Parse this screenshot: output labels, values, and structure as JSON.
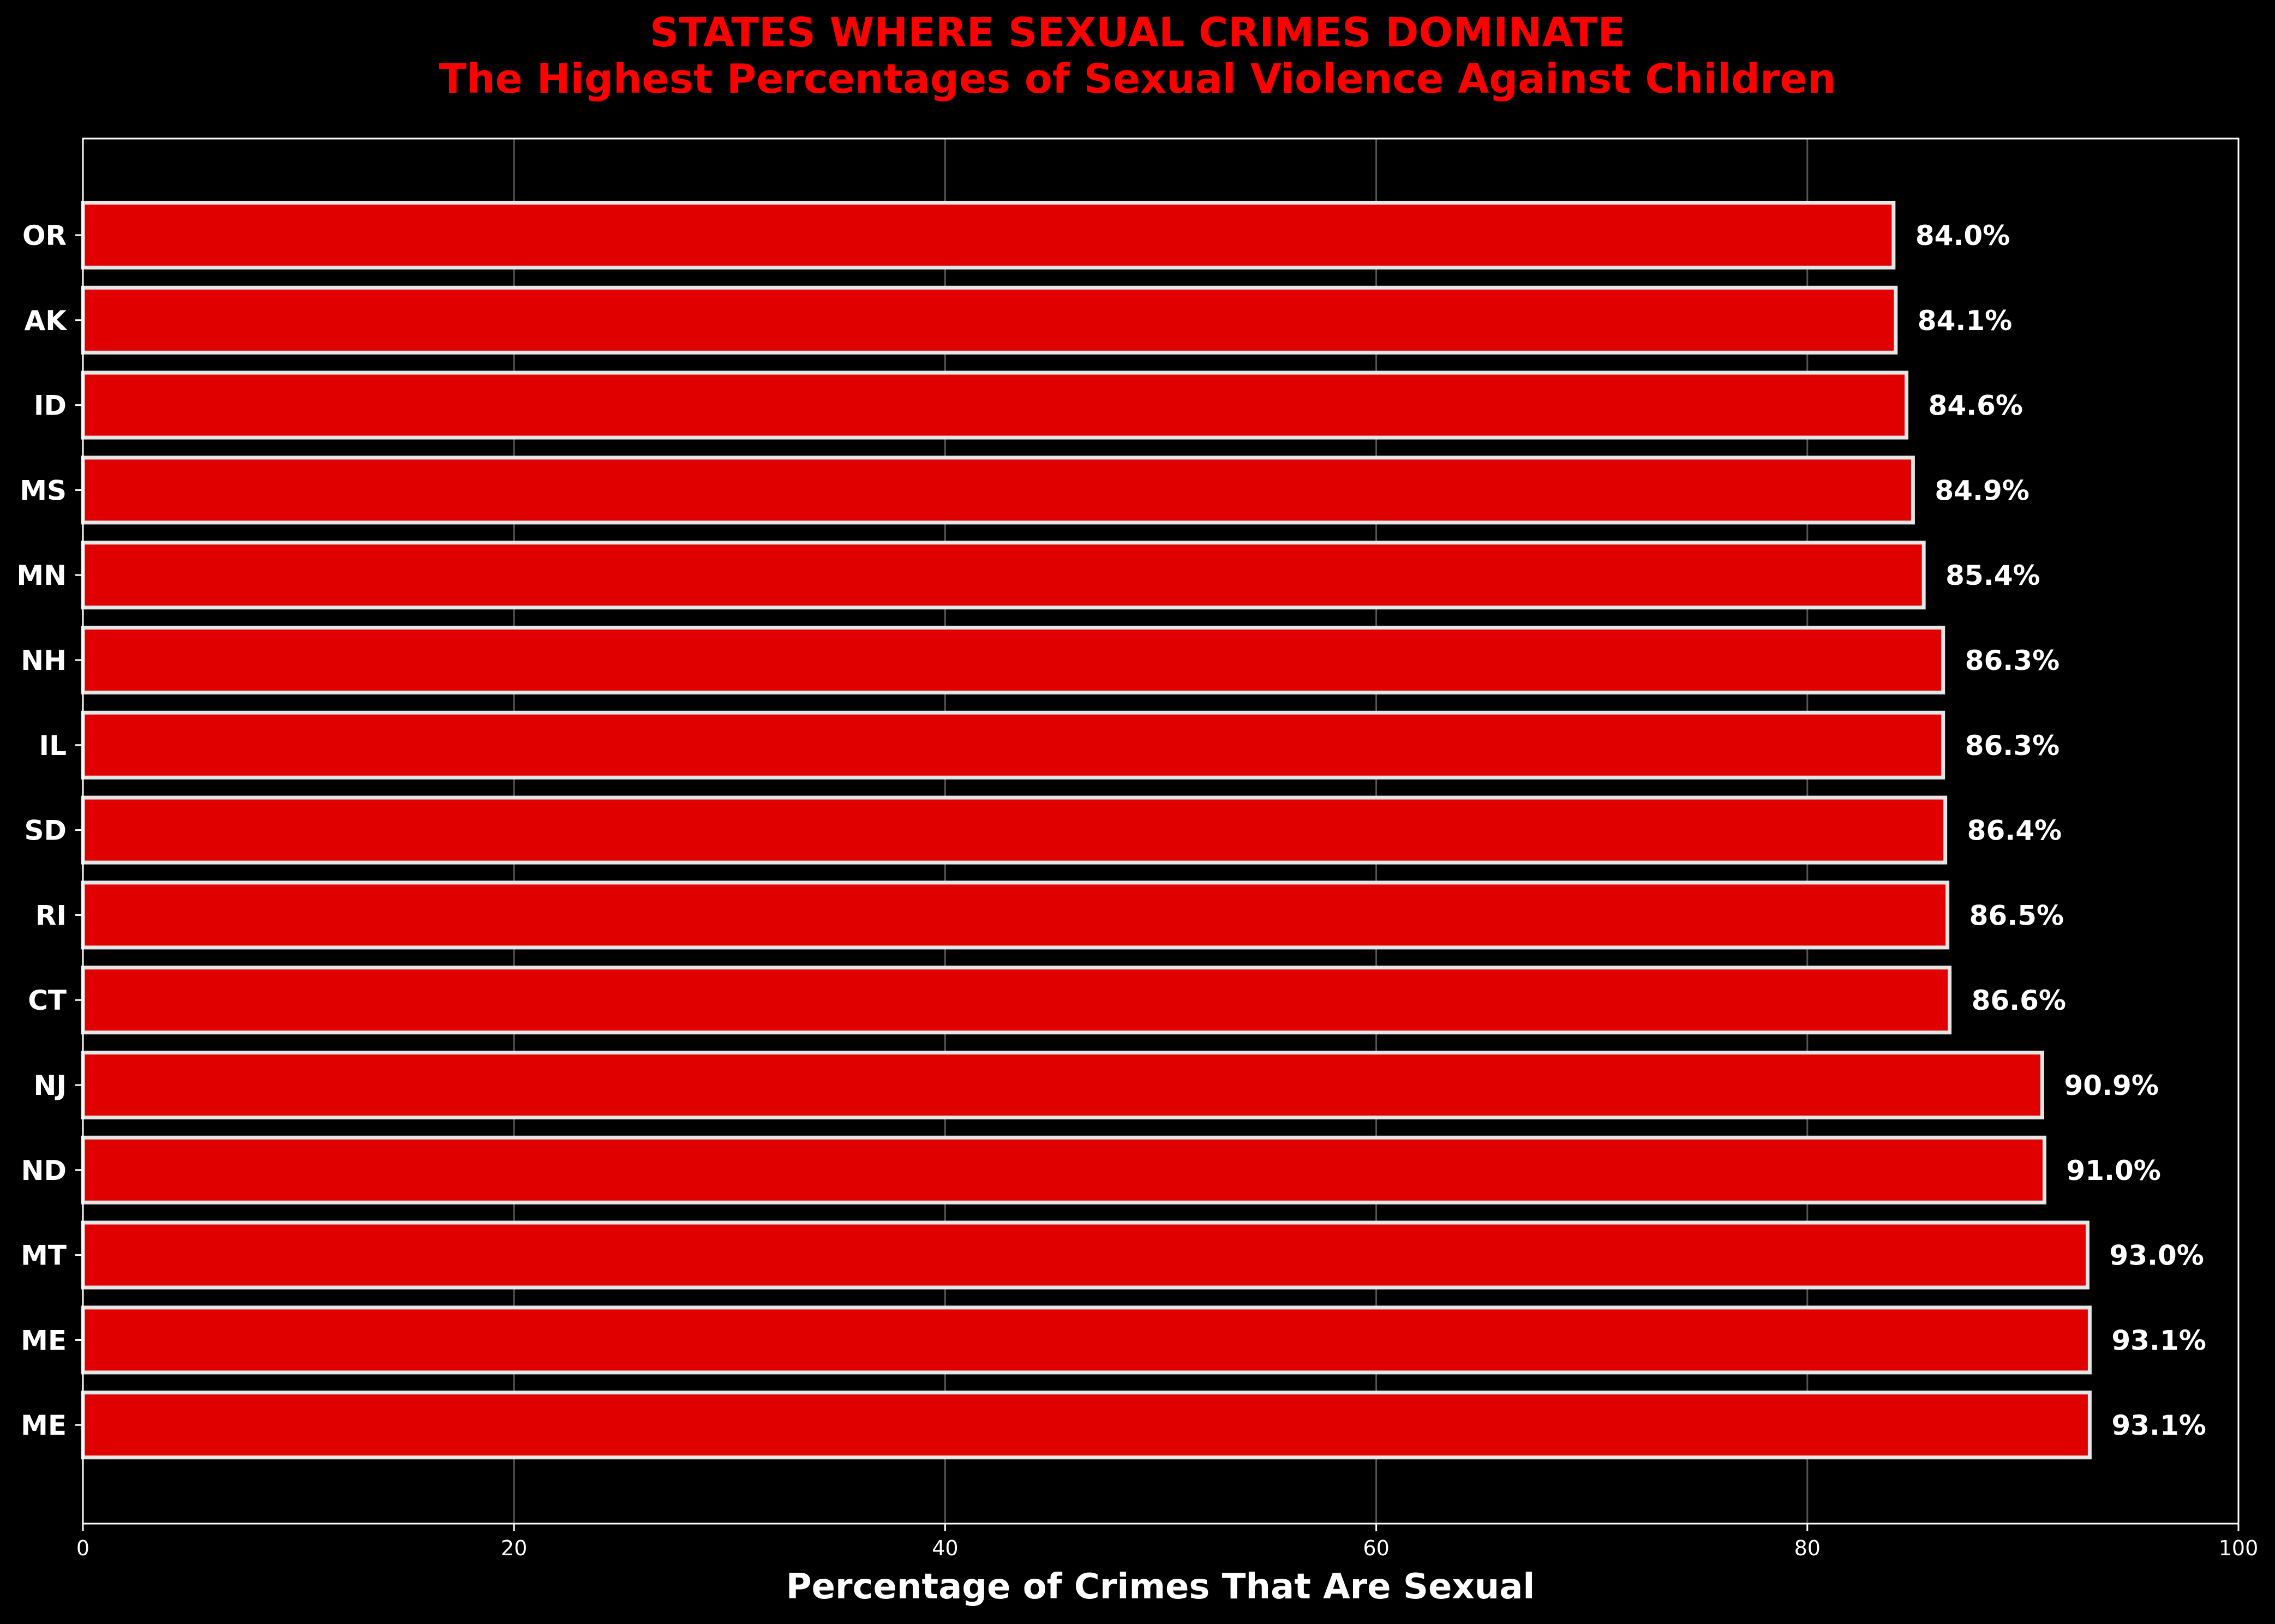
{
  "chart_data": {
    "type": "bar",
    "orientation": "horizontal",
    "title": "STATES WHERE SEXUAL CRIMES DOMINATE",
    "subtitle": "The Highest Percentages of Sexual Violence Against Children",
    "xlabel": "Percentage of Crimes That Are Sexual",
    "ylabel": "",
    "xlim": [
      0,
      100
    ],
    "x_ticks": [
      "0",
      "20",
      "40",
      "60",
      "80",
      "100"
    ],
    "x_tick_values": [
      0,
      20,
      40,
      60,
      80,
      100
    ],
    "grid": "vertical",
    "categories": [
      "OR",
      "AK",
      "ID",
      "MS",
      "MN",
      "NH",
      "IL",
      "SD",
      "RI",
      "CT",
      "NJ",
      "ND",
      "MT",
      "ME",
      "ME"
    ],
    "values": [
      84.0,
      84.1,
      84.6,
      84.9,
      85.4,
      86.3,
      86.3,
      86.4,
      86.5,
      86.6,
      90.9,
      91.0,
      93.0,
      93.1,
      93.1
    ],
    "value_labels": [
      "84.0%",
      "84.1%",
      "84.6%",
      "84.9%",
      "85.4%",
      "86.3%",
      "86.3%",
      "86.4%",
      "86.5%",
      "86.6%",
      "90.9%",
      "91.0%",
      "93.0%",
      "93.1%",
      "93.1%"
    ],
    "colors": {
      "background": "#000000",
      "bar": "#e00000",
      "bar_edge": "#e6e6e6",
      "title": "#ff0000",
      "text": "#ffffff",
      "grid": "#555555",
      "axis": "#ffffff"
    }
  }
}
